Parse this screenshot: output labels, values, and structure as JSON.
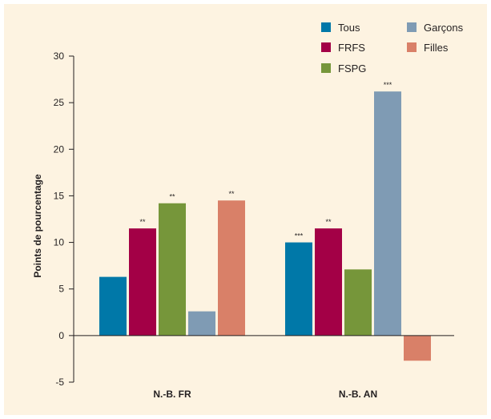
{
  "chart_data": {
    "type": "bar",
    "categories": [
      "N.-B. FR",
      "N.-B. AN"
    ],
    "series": [
      {
        "name": "Tous",
        "color": "#0078a8",
        "values": [
          6.3,
          10.0
        ],
        "significance": [
          "",
          "***"
        ]
      },
      {
        "name": "FRFS",
        "color": "#a30046",
        "values": [
          11.5,
          11.5
        ],
        "significance": [
          "**",
          "**"
        ]
      },
      {
        "name": "FSPG",
        "color": "#76963a",
        "values": [
          14.2,
          7.1
        ],
        "significance": [
          "**",
          ""
        ]
      },
      {
        "name": "Garçons",
        "color": "#7f9bb4",
        "values": [
          2.6,
          26.2
        ],
        "significance": [
          "",
          "***"
        ]
      },
      {
        "name": "Filles",
        "color": "#d98068",
        "values": [
          14.5,
          -2.7
        ],
        "significance": [
          "**",
          ""
        ]
      }
    ],
    "ylabel": "Points de pourcentage",
    "ylim": [
      -5,
      30
    ],
    "yticks": [
      -5,
      0,
      5,
      10,
      15,
      20,
      25,
      30
    ],
    "legend_position": "top-right",
    "grid": false
  }
}
